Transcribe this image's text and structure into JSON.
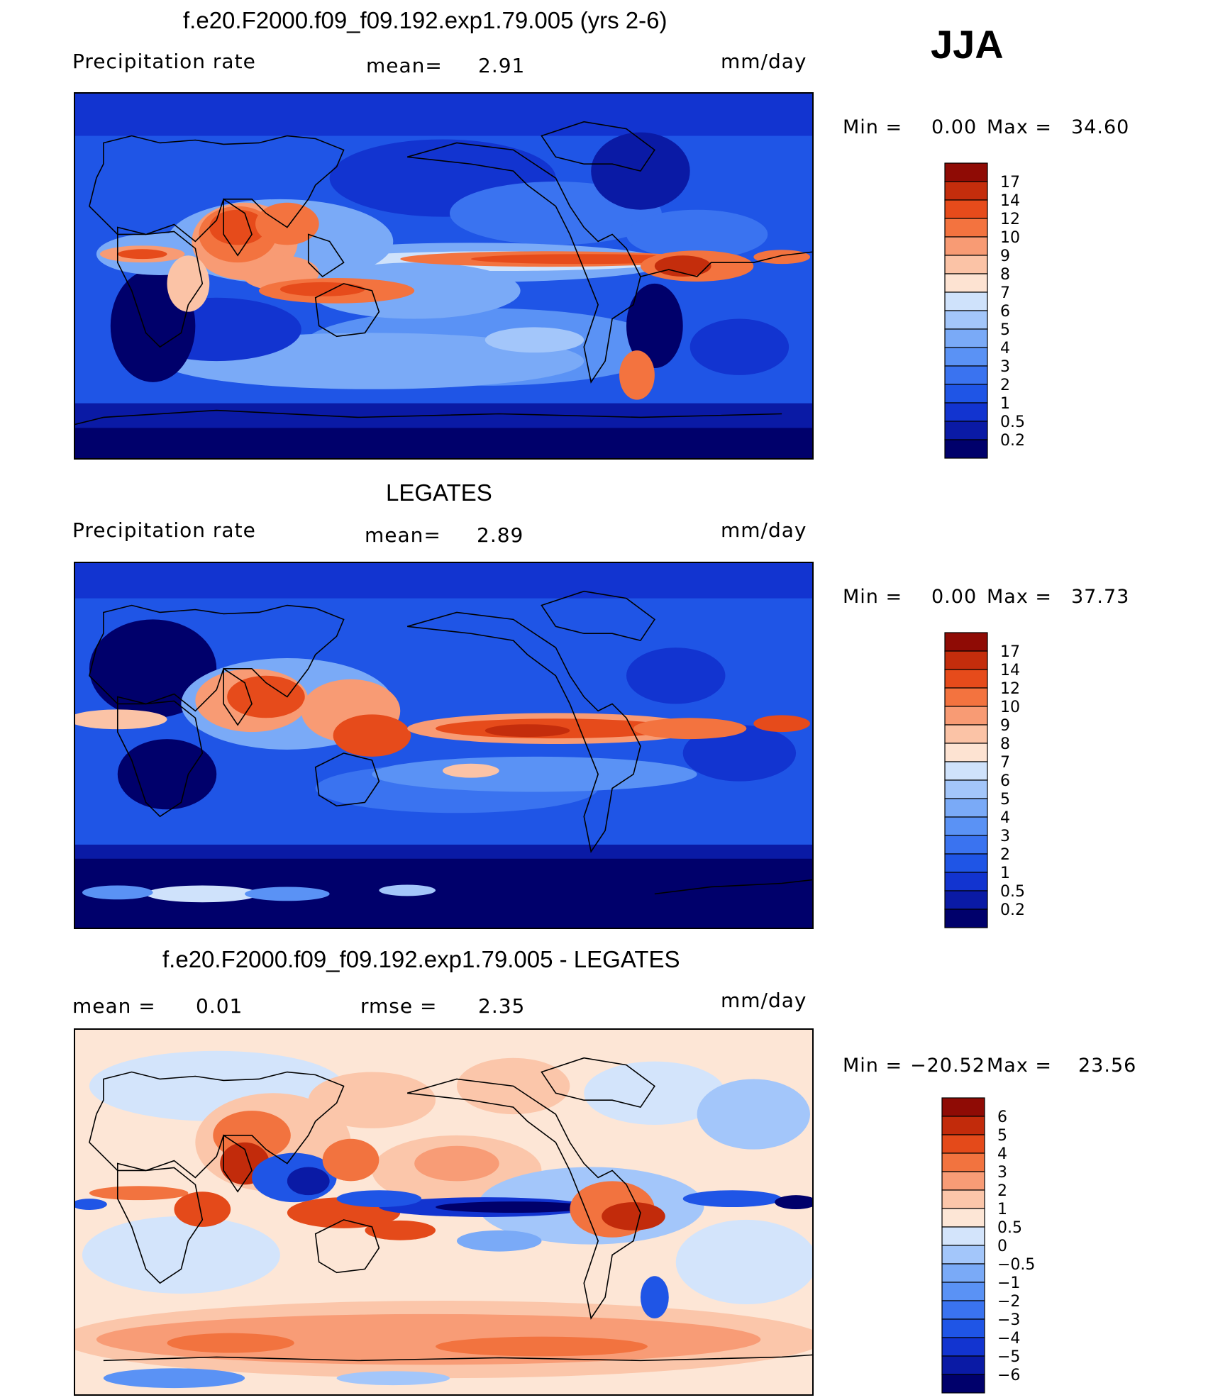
{
  "season": "JJA",
  "colors": {
    "precip_scale": [
      "#00006b",
      "#0a1aa5",
      "#1234d0",
      "#1f55e6",
      "#3a73f0",
      "#5a92f5",
      "#7aaaf7",
      "#a3c6fa",
      "#cfe2fb",
      "#fde3d2",
      "#fbc3a6",
      "#f89b74",
      "#f3733f",
      "#e64b1b",
      "#c42d0c",
      "#8f0b05"
    ],
    "diff_scale": [
      "#00006b",
      "#0a1aa5",
      "#1234d0",
      "#1f55e6",
      "#3a73f0",
      "#5a92f5",
      "#7aaaf7",
      "#a3c6fa",
      "#d3e4fb",
      "#fde6d6",
      "#fbc6aa",
      "#f89c76",
      "#f2733f",
      "#e44a1a",
      "#c22b0b",
      "#8f0b05"
    ],
    "coastline": "#000000"
  },
  "panels": [
    {
      "title": "f.e20.F2000.f09_f09.192.exp1.79.005 (yrs 2-6)",
      "left": "Precipitation  rate",
      "mid_label": "mean=",
      "mid_value": "2.91",
      "units": "mm/day",
      "min_label": "Min  =",
      "min_value": "0.00",
      "max_label": "Max  =",
      "max_value": "34.60",
      "colorbar_labels": [
        "17",
        "14",
        "12",
        "10",
        "9",
        "8",
        "7",
        "6",
        "5",
        "4",
        "3",
        "2",
        "1",
        "0.5",
        "0.2"
      ]
    },
    {
      "title": "LEGATES",
      "left": "Precipitation  rate",
      "mid_label": "mean=",
      "mid_value": "2.89",
      "units": "mm/day",
      "min_label": "Min  =",
      "min_value": "0.00",
      "max_label": "Max  =",
      "max_value": "37.73",
      "colorbar_labels": [
        "17",
        "14",
        "12",
        "10",
        "9",
        "8",
        "7",
        "6",
        "5",
        "4",
        "3",
        "2",
        "1",
        "0.5",
        "0.2"
      ]
    },
    {
      "title": "f.e20.F2000.f09_f09.192.exp1.79.005 - LEGATES",
      "left_label": "mean  =",
      "left_value": "0.01",
      "mid_label": "rmse  =",
      "mid_value": "2.35",
      "units": "mm/day",
      "min_label": "Min  =",
      "min_value": "−20.52",
      "max_label": "Max  =",
      "max_value": "23.56",
      "colorbar_labels": [
        "6",
        "5",
        "4",
        "3",
        "2",
        "1",
        "0.5",
        "0",
        "−0.5",
        "−1",
        "−2",
        "−3",
        "−4",
        "−5",
        "−6"
      ]
    }
  ]
}
